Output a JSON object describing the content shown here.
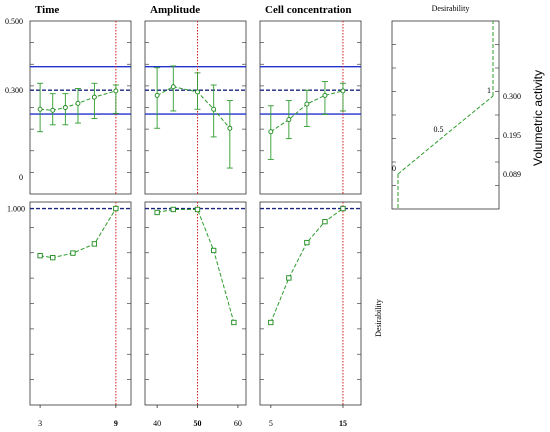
{
  "chart_data": {
    "type": "line",
    "factors": [
      {
        "name": "Time",
        "ticks": [
          3,
          9
        ],
        "bold_tick": 9,
        "current": 9,
        "prediction": {
          "x": [
            3,
            4,
            5,
            6,
            7.3,
            9
          ],
          "y": [
            0.245,
            0.242,
            0.25,
            0.262,
            0.28,
            0.298
          ],
          "err_low": [
            0.18,
            0.2,
            0.2,
            0.205,
            0.218,
            0.233
          ],
          "err_high": [
            0.32,
            0.29,
            0.29,
            0.305,
            0.32,
            0.315
          ]
        },
        "desirability": {
          "x": [
            3,
            4,
            5.6,
            7.3,
            9
          ],
          "y": [
            0.64,
            0.625,
            0.66,
            0.73,
            1.0
          ]
        }
      },
      {
        "name": "Amplitude",
        "ticks": [
          40,
          50,
          60
        ],
        "bold_tick": 50,
        "current": 50,
        "prediction": {
          "x": [
            40,
            44,
            50,
            54,
            58
          ],
          "y": [
            0.285,
            0.31,
            0.295,
            0.245,
            0.19
          ],
          "err_low": [
            0.19,
            0.24,
            0.245,
            0.165,
            0.075
          ],
          "err_high": [
            0.365,
            0.37,
            0.35,
            0.315,
            0.27
          ]
        },
        "desirability": {
          "x": [
            40,
            44,
            50,
            54,
            59
          ],
          "y": [
            0.97,
            0.993,
            0.993,
            0.68,
            0.13
          ]
        }
      },
      {
        "name": "Cell concentration",
        "ticks": [
          5,
          15
        ],
        "bold_tick": 15,
        "current": 15,
        "prediction": {
          "x": [
            5,
            7.5,
            10,
            12.5,
            15
          ],
          "y": [
            0.18,
            0.215,
            0.26,
            0.285,
            0.298
          ],
          "err_low": [
            0.1,
            0.16,
            0.195,
            0.23,
            0.24
          ],
          "err_high": [
            0.255,
            0.27,
            0.3,
            0.325,
            0.32
          ]
        },
        "desirability": {
          "x": [
            5,
            7.5,
            10,
            12.5,
            15
          ],
          "y": [
            0.13,
            0.47,
            0.74,
            0.9,
            1.0
          ]
        }
      }
    ],
    "prediction_yticks": [
      "0.500",
      "0.300",
      "0"
    ],
    "prediction_ylim": [
      0,
      0.5
    ],
    "predicted_value": 0.3,
    "confidence_band": [
      0.231,
      0.368
    ],
    "desirability_ytick": "1.000",
    "desirability_ylim": [
      -0.5,
      1.05
    ],
    "response_desirability": {
      "title": "Desirability",
      "ylabel": "Volumetric activity",
      "ytick_labels": [
        "0.300",
        "0.195",
        "0.089"
      ],
      "point_labels": [
        "0",
        "0.5",
        "1"
      ],
      "x": [
        0,
        0.5,
        1
      ],
      "y": [
        0.089,
        0.195,
        0.3
      ]
    },
    "row_ylabel": "Desirability",
    "colors": {
      "curve": "#2e9c2e",
      "marker": "#1a8a1a",
      "limit_lines": "#2233cc",
      "predicted": "#1a237e",
      "current_value": "#d21f1f",
      "desirability_top": "#1a237e"
    }
  }
}
